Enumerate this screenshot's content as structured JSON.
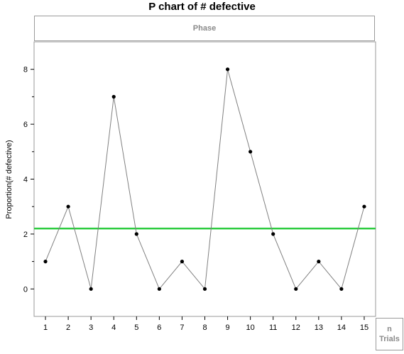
{
  "chart_data": {
    "type": "line",
    "title": "P chart of # defective",
    "phase_label": "Phase",
    "ylabel": "Proportion(# defective)",
    "xlabel": "",
    "trials_label_n": "n",
    "trials_label": "Trials",
    "x": [
      1,
      2,
      3,
      4,
      5,
      6,
      7,
      8,
      9,
      10,
      11,
      12,
      13,
      14,
      15
    ],
    "values": [
      1,
      3,
      0,
      7,
      2,
      0,
      1,
      0,
      8,
      5,
      2,
      0,
      1,
      0,
      3
    ],
    "center_line": 2.2,
    "ylim": [
      -1,
      9
    ],
    "xlim": [
      0.5,
      15.5
    ],
    "y_major_ticks": [
      0,
      2,
      4,
      6,
      8
    ],
    "y_minor_ticks": [
      1,
      3,
      5,
      7
    ],
    "colors": {
      "line": "#808080",
      "points": "#000000",
      "center_line": "#2ecc40",
      "frame": "#9a9a9a"
    },
    "grid": false
  }
}
